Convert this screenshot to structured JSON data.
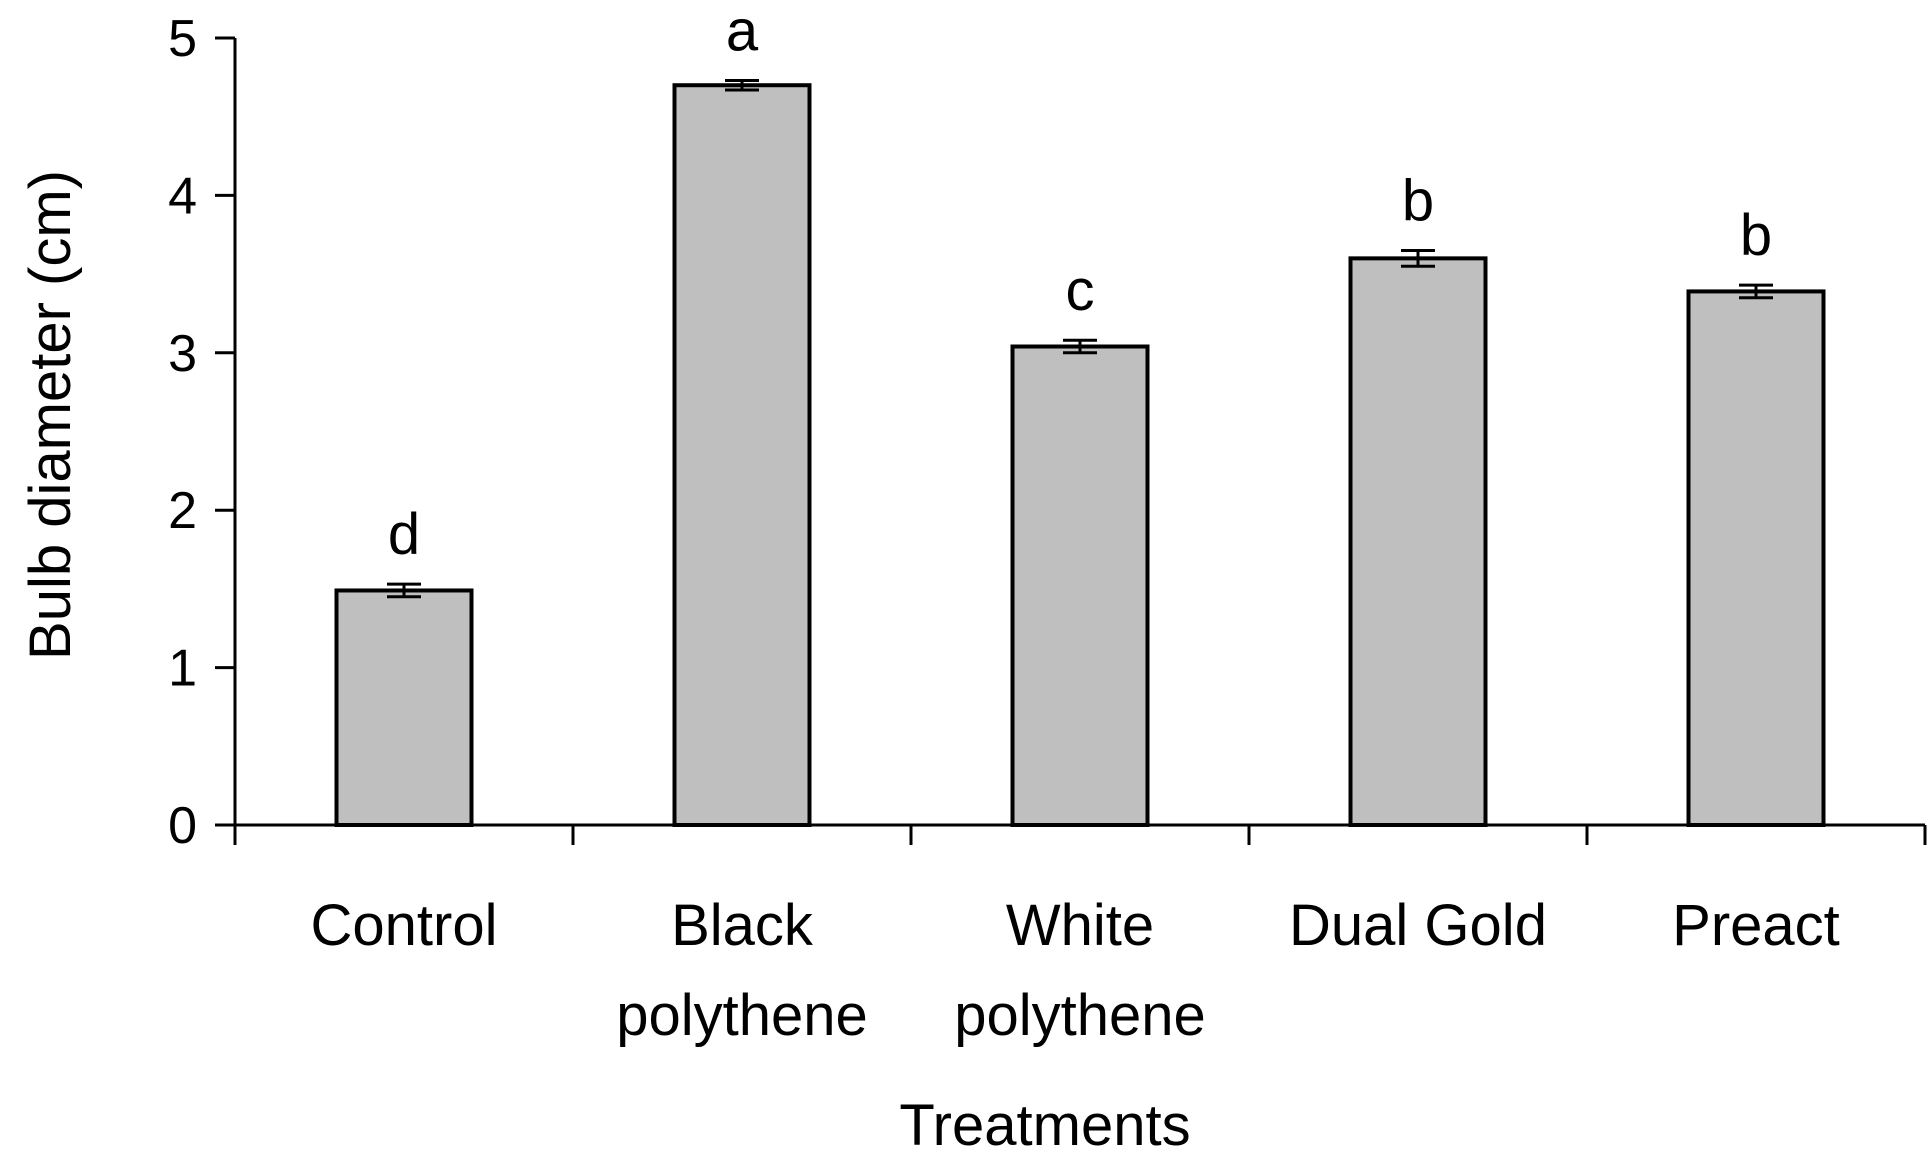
{
  "chart_data": {
    "type": "bar",
    "categories": [
      [
        "Control"
      ],
      [
        "Black",
        "polythene"
      ],
      [
        "White",
        "polythene"
      ],
      [
        "Dual Gold"
      ],
      [
        "Preact"
      ]
    ],
    "values": [
      1.49,
      4.7,
      3.04,
      3.6,
      3.39
    ],
    "errors": [
      0.04,
      0.03,
      0.04,
      0.05,
      0.04
    ],
    "significance_letters": [
      "d",
      "a",
      "c",
      "b",
      "b"
    ],
    "title": "",
    "xlabel": "Treatments",
    "ylabel": "Bulb diameter (cm)",
    "ylim": [
      0,
      5
    ],
    "yticks": [
      "0",
      "1",
      "2",
      "3",
      "4",
      "5"
    ],
    "grid": false,
    "legend": "none",
    "colors": {
      "bar_fill": "#bfbfbf",
      "bar_stroke": "#000000"
    }
  }
}
